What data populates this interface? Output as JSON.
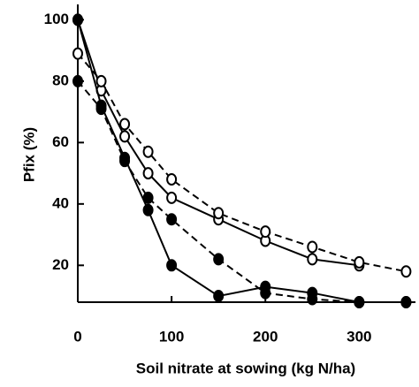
{
  "chart_data": {
    "type": "line",
    "xlabel": "Soil nitrate at sowing (kg N/ha)",
    "ylabel": "Pfix (%)",
    "xlim": [
      0,
      360
    ],
    "ylim": [
      8,
      105
    ],
    "xticks": [
      0,
      100,
      200,
      300
    ],
    "yticks": [
      20,
      40,
      60,
      80,
      100
    ],
    "series": [
      {
        "color": "#000000",
        "dashed": false,
        "marker": "open",
        "x": [
          0,
          25,
          50,
          75,
          100,
          150,
          200,
          250,
          300
        ],
        "values": [
          100,
          77,
          62,
          50,
          42,
          35,
          28,
          22,
          20
        ]
      },
      {
        "color": "#000000",
        "dashed": true,
        "marker": "open",
        "x": [
          0,
          25,
          50,
          75,
          100,
          150,
          200,
          250,
          300,
          350
        ],
        "values": [
          89,
          80,
          66,
          57,
          48,
          37,
          31,
          26,
          21,
          18
        ]
      },
      {
        "color": "#000000",
        "dashed": false,
        "marker": "filled",
        "x": [
          0,
          25,
          50,
          75,
          100,
          150,
          200,
          250,
          300,
          350
        ],
        "values": [
          100,
          72,
          55,
          38,
          20,
          10,
          13,
          11,
          8,
          8
        ]
      },
      {
        "color": "#000000",
        "dashed": true,
        "marker": "filled",
        "x": [
          0,
          25,
          50,
          75,
          100,
          150,
          200,
          250,
          300,
          350
        ],
        "values": [
          80,
          71,
          54,
          42,
          35,
          22,
          11,
          9,
          8,
          8
        ]
      }
    ]
  }
}
